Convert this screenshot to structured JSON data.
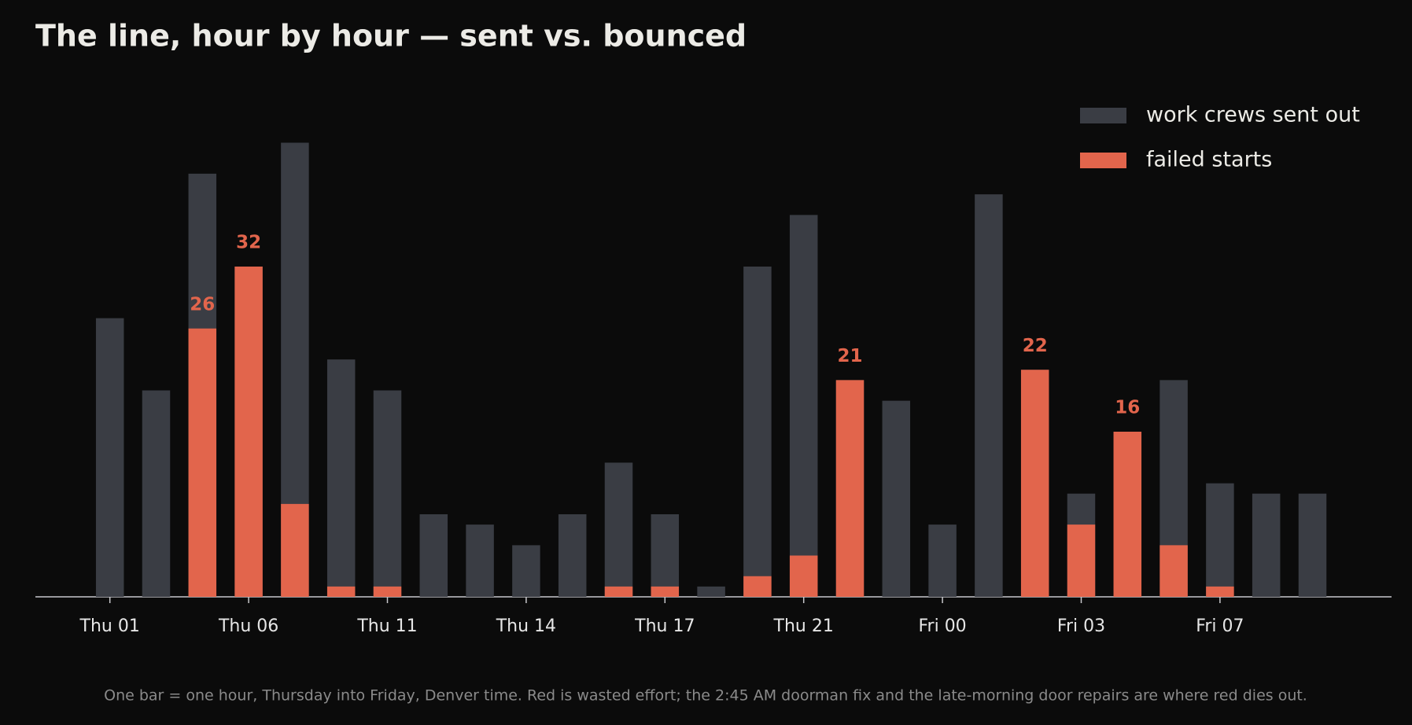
{
  "chart_data": {
    "type": "bar",
    "title": "The line, hour by hour — sent vs. bounced",
    "footnote": "One bar = one hour, Thursday into Friday, Denver time. Red is wasted effort; the 2:45 AM doorman fix and the late-morning door repairs are where red dies out.",
    "categories": [
      "Thu 01",
      null,
      null,
      "Thu 06",
      null,
      null,
      "Thu 11",
      null,
      null,
      "Thu 14",
      null,
      null,
      "Thu 17",
      null,
      null,
      "Thu 21",
      null,
      null,
      "Fri 00",
      null,
      null,
      "Fri 03",
      null,
      null,
      "Fri 07",
      null,
      null
    ],
    "series": [
      {
        "name": "work crews sent out",
        "color": "#3a3d44",
        "values": [
          27,
          20,
          41,
          32,
          44,
          23,
          20,
          8,
          7,
          5,
          8,
          13,
          8,
          1,
          32,
          37,
          21,
          19,
          7,
          39,
          22,
          10,
          16,
          21,
          11,
          10,
          10
        ]
      },
      {
        "name": "failed starts",
        "color": "#e2654c",
        "values": [
          0,
          0,
          26,
          32,
          9,
          1,
          1,
          0,
          0,
          0,
          0,
          1,
          1,
          0,
          2,
          4,
          21,
          0,
          0,
          0,
          22,
          7,
          16,
          5,
          1,
          0,
          0
        ],
        "value_labels": [
          null,
          null,
          "26",
          "32",
          null,
          null,
          null,
          null,
          null,
          null,
          null,
          null,
          null,
          null,
          null,
          null,
          "21",
          null,
          null,
          null,
          "22",
          null,
          "16",
          null,
          null,
          null,
          null
        ]
      }
    ],
    "ylim": [
      0,
      48
    ],
    "legend": "top-right",
    "grid": false
  }
}
